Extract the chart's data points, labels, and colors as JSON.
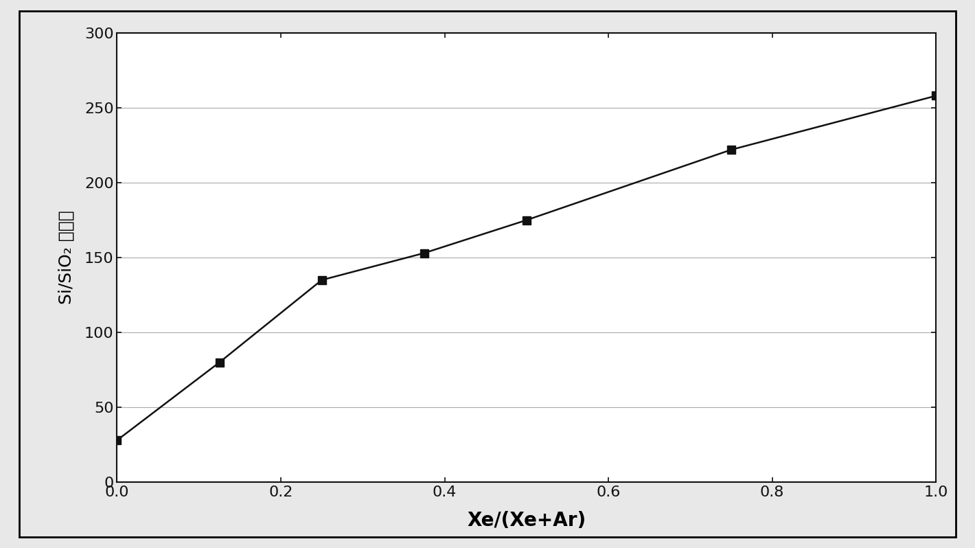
{
  "x": [
    0.0,
    0.125,
    0.25,
    0.375,
    0.5,
    0.75,
    1.0
  ],
  "y": [
    28,
    80,
    135,
    153,
    175,
    222,
    258
  ],
  "xlabel": "Xe/(Xe+Ar)",
  "ylabel_latin": "Si/SiO",
  "ylabel_sub": "2",
  "ylabel_chinese": " 选择性",
  "xlim": [
    0.0,
    1.0
  ],
  "ylim": [
    0,
    300
  ],
  "xticks": [
    0.0,
    0.2,
    0.4,
    0.6,
    0.8,
    1.0
  ],
  "xtick_labels": [
    "0.0",
    "0.2",
    "0.4",
    "0.6",
    "0.8",
    "1.0"
  ],
  "yticks": [
    0,
    50,
    100,
    150,
    200,
    250,
    300
  ],
  "ytick_labels": [
    "0",
    "50",
    "100",
    "150",
    "200",
    "250",
    "300"
  ],
  "line_color": "#111111",
  "marker": "s",
  "marker_color": "#111111",
  "marker_size": 9,
  "line_width": 1.8,
  "background_color": "#ffffff",
  "outer_background": "#e8e8e8",
  "xlabel_fontsize": 20,
  "ylabel_fontsize": 18,
  "tick_fontsize": 16,
  "grid_color": "#aaaaaa",
  "grid_linewidth": 0.8
}
